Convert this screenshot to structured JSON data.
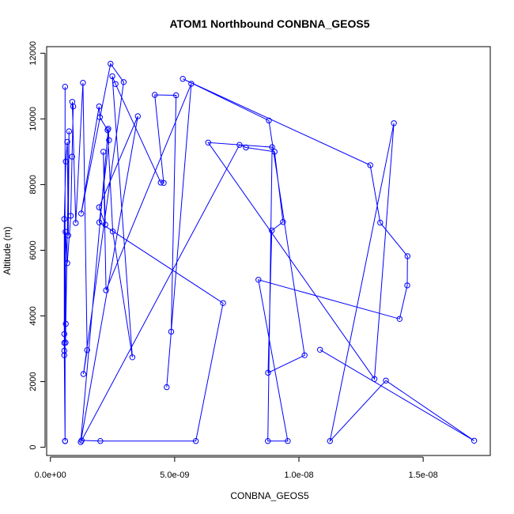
{
  "chart_data": {
    "type": "line",
    "title": "ATOM1 Northbound CONBNA_GEOS5",
    "xlabel": "CONBNA_GEOS5",
    "ylabel": "Altitude (m)",
    "xlim": [
      -1.5e-10,
      1.77e-08
    ],
    "ylim": [
      -250,
      12200
    ],
    "x_ticks": [
      0,
      5e-09,
      1e-08,
      1.5e-08
    ],
    "x_tick_labels": [
      "0.0e+00",
      "5.0e-09",
      "1.0e-08",
      "1.5e-08"
    ],
    "y_ticks": [
      0,
      2000,
      4000,
      6000,
      8000,
      10000,
      12000
    ],
    "y_tick_labels": [
      "0",
      "2000",
      "4000",
      "6000",
      "8000",
      "10000",
      "12000"
    ],
    "grid": false,
    "legend": "none",
    "color": "#0000ff",
    "series": [
      {
        "x": [
          5.9e-10,
          5.9e-10,
          5.9e-10,
          5.6e-10,
          5.6e-10,
          5.6e-10,
          5.6e-10,
          5.6e-10,
          6.2e-10,
          6.8e-10,
          7.2e-10,
          7.5e-10,
          6.2e-10,
          6.1e-10,
          6.1e-10,
          6.8e-10,
          8.2e-10,
          8.7e-10,
          9.2e-10,
          8.8e-10,
          1.02e-09,
          1.31e-09,
          1.48e-09,
          1.33e-09,
          2.95e-09,
          2.42e-09,
          1.24e-09,
          1.96e-09,
          1.99e-09,
          2.3e-09,
          2.51e-09,
          3.3e-09,
          2.49e-09,
          2.62e-09,
          4.44e-09,
          4.56e-09,
          4.2e-09,
          5.06e-09,
          4.86e-09,
          4.68e-09,
          5.67e-09,
          2.24e-09,
          2.13e-09,
          2.21e-09,
          1.96e-09,
          3.52e-09,
          1.22e-09,
          2.33e-09,
          2.36e-09,
          1.97e-09,
          6.95e-09,
          5.85e-09,
          2.01e-09,
          1.26e-09,
          7.61e-09,
          7.87e-09,
          9.02e-09,
          9.36e-09,
          8.91e-09,
          8.76e-09,
          1.023e-08,
          8.79e-09,
          5.33e-09,
          1.287e-08,
          1.327e-08,
          1.437e-08,
          1.436e-08,
          1.405e-08,
          8.37e-09,
          9.55e-09,
          8.75e-09,
          8.92e-09,
          6.35e-09,
          1.304e-08,
          1.382e-08,
          1.125e-08,
          1.35e-08,
          1.705e-08,
          1.085e-08
        ],
        "y": [
          190,
          10980,
          190,
          2800,
          3180,
          2940,
          3450,
          6950,
          8700,
          9300,
          6450,
          9620,
          3760,
          3190,
          6560,
          5610,
          7050,
          8850,
          10380,
          10520,
          6830,
          11100,
          2960,
          2230,
          11120,
          11680,
          7120,
          10380,
          10050,
          9660,
          6570,
          2740,
          11300,
          11060,
          8060,
          8050,
          10730,
          10720,
          3520,
          1830,
          11070,
          4780,
          9000,
          6780,
          7310,
          10080,
          160,
          9700,
          9350,
          6850,
          4390,
          190,
          190,
          210,
          9210,
          9130,
          9000,
          6860,
          6600,
          2270,
          2800,
          9950,
          11220,
          8590,
          6840,
          5820,
          4930,
          3910,
          5100,
          190,
          190,
          9140,
          9280,
          2080,
          9870,
          190,
          2030,
          200,
          2970
        ]
      }
    ]
  }
}
